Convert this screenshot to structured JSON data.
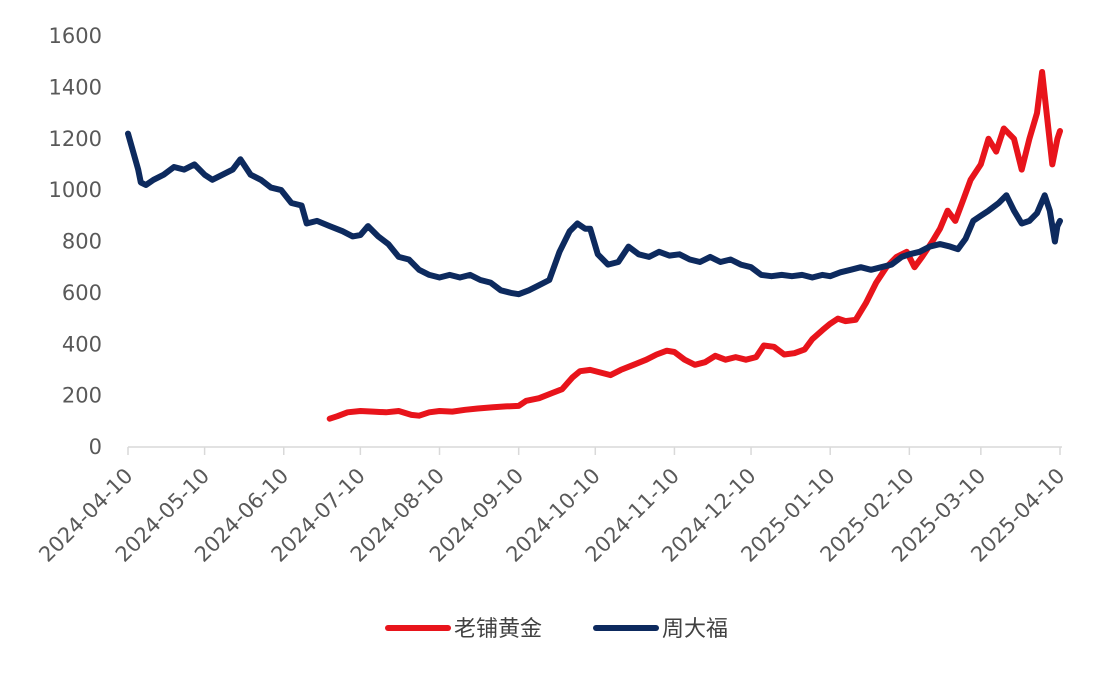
{
  "chart_data": {
    "type": "line",
    "ylim": [
      0,
      1600
    ],
    "yticks": [
      0,
      200,
      400,
      600,
      800,
      1000,
      1200,
      1400,
      1600
    ],
    "xlim": [
      "2024-04-10",
      "2025-04-10"
    ],
    "xticks": [
      "2024-04-10",
      "2024-05-10",
      "2024-06-10",
      "2024-07-10",
      "2024-08-10",
      "2024-09-10",
      "2024-10-10",
      "2024-11-10",
      "2024-12-10",
      "2025-01-10",
      "2025-02-10",
      "2025-03-10",
      "2025-04-10"
    ],
    "legend_position": "bottom",
    "grid": false,
    "series": [
      {
        "name": "老铺黄金",
        "color": "#e8141b",
        "points": [
          [
            "2024-06-28",
            110
          ],
          [
            "2024-07-01",
            120
          ],
          [
            "2024-07-05",
            135
          ],
          [
            "2024-07-10",
            140
          ],
          [
            "2024-07-15",
            138
          ],
          [
            "2024-07-20",
            135
          ],
          [
            "2024-07-25",
            140
          ],
          [
            "2024-07-30",
            125
          ],
          [
            "2024-08-02",
            122
          ],
          [
            "2024-08-06",
            135
          ],
          [
            "2024-08-10",
            140
          ],
          [
            "2024-08-15",
            138
          ],
          [
            "2024-08-20",
            145
          ],
          [
            "2024-08-25",
            150
          ],
          [
            "2024-08-31",
            155
          ],
          [
            "2024-09-05",
            158
          ],
          [
            "2024-09-10",
            160
          ],
          [
            "2024-09-13",
            180
          ],
          [
            "2024-09-18",
            190
          ],
          [
            "2024-09-23",
            210
          ],
          [
            "2024-09-27",
            225
          ],
          [
            "2024-10-01",
            270
          ],
          [
            "2024-10-04",
            295
          ],
          [
            "2024-10-08",
            300
          ],
          [
            "2024-10-12",
            290
          ],
          [
            "2024-10-16",
            280
          ],
          [
            "2024-10-20",
            300
          ],
          [
            "2024-10-25",
            320
          ],
          [
            "2024-10-30",
            340
          ],
          [
            "2024-11-03",
            360
          ],
          [
            "2024-11-07",
            375
          ],
          [
            "2024-11-10",
            370
          ],
          [
            "2024-11-14",
            340
          ],
          [
            "2024-11-18",
            320
          ],
          [
            "2024-11-22",
            330
          ],
          [
            "2024-11-26",
            355
          ],
          [
            "2024-11-30",
            340
          ],
          [
            "2024-12-04",
            350
          ],
          [
            "2024-12-08",
            340
          ],
          [
            "2024-12-12",
            350
          ],
          [
            "2024-12-15",
            395
          ],
          [
            "2024-12-19",
            390
          ],
          [
            "2024-12-23",
            360
          ],
          [
            "2024-12-27",
            365
          ],
          [
            "2024-12-31",
            380
          ],
          [
            "2025-01-03",
            420
          ],
          [
            "2025-01-07",
            455
          ],
          [
            "2025-01-10",
            480
          ],
          [
            "2025-01-13",
            500
          ],
          [
            "2025-01-16",
            490
          ],
          [
            "2025-01-20",
            495
          ],
          [
            "2025-01-24",
            560
          ],
          [
            "2025-01-28",
            640
          ],
          [
            "2025-02-01",
            700
          ],
          [
            "2025-02-05",
            740
          ],
          [
            "2025-02-09",
            760
          ],
          [
            "2025-02-12",
            700
          ],
          [
            "2025-02-15",
            740
          ],
          [
            "2025-02-19",
            800
          ],
          [
            "2025-02-22",
            850
          ],
          [
            "2025-02-25",
            920
          ],
          [
            "2025-02-28",
            880
          ],
          [
            "2025-03-03",
            960
          ],
          [
            "2025-03-06",
            1040
          ],
          [
            "2025-03-10",
            1100
          ],
          [
            "2025-03-13",
            1200
          ],
          [
            "2025-03-16",
            1150
          ],
          [
            "2025-03-19",
            1240
          ],
          [
            "2025-03-23",
            1200
          ],
          [
            "2025-03-26",
            1080
          ],
          [
            "2025-03-29",
            1200
          ],
          [
            "2025-04-01",
            1300
          ],
          [
            "2025-04-03",
            1460
          ],
          [
            "2025-04-05",
            1280
          ],
          [
            "2025-04-07",
            1100
          ],
          [
            "2025-04-09",
            1200
          ],
          [
            "2025-04-10",
            1230
          ]
        ]
      },
      {
        "name": "周大福",
        "color": "#0d2a5e",
        "points": [
          [
            "2024-04-10",
            1220
          ],
          [
            "2024-04-12",
            1150
          ],
          [
            "2024-04-14",
            1080
          ],
          [
            "2024-04-15",
            1030
          ],
          [
            "2024-04-17",
            1020
          ],
          [
            "2024-04-20",
            1040
          ],
          [
            "2024-04-24",
            1060
          ],
          [
            "2024-04-28",
            1090
          ],
          [
            "2024-05-02",
            1080
          ],
          [
            "2024-05-06",
            1100
          ],
          [
            "2024-05-10",
            1060
          ],
          [
            "2024-05-13",
            1040
          ],
          [
            "2024-05-17",
            1060
          ],
          [
            "2024-05-21",
            1080
          ],
          [
            "2024-05-24",
            1120
          ],
          [
            "2024-05-28",
            1060
          ],
          [
            "2024-06-01",
            1040
          ],
          [
            "2024-06-05",
            1010
          ],
          [
            "2024-06-09",
            1000
          ],
          [
            "2024-06-13",
            950
          ],
          [
            "2024-06-17",
            940
          ],
          [
            "2024-06-19",
            870
          ],
          [
            "2024-06-23",
            880
          ],
          [
            "2024-06-28",
            860
          ],
          [
            "2024-07-03",
            840
          ],
          [
            "2024-07-07",
            820
          ],
          [
            "2024-07-10",
            825
          ],
          [
            "2024-07-13",
            860
          ],
          [
            "2024-07-17",
            820
          ],
          [
            "2024-07-21",
            790
          ],
          [
            "2024-07-25",
            740
          ],
          [
            "2024-07-29",
            730
          ],
          [
            "2024-08-02",
            690
          ],
          [
            "2024-08-06",
            670
          ],
          [
            "2024-08-10",
            660
          ],
          [
            "2024-08-14",
            670
          ],
          [
            "2024-08-18",
            660
          ],
          [
            "2024-08-22",
            670
          ],
          [
            "2024-08-26",
            650
          ],
          [
            "2024-08-30",
            640
          ],
          [
            "2024-09-03",
            610
          ],
          [
            "2024-09-07",
            600
          ],
          [
            "2024-09-10",
            595
          ],
          [
            "2024-09-14",
            610
          ],
          [
            "2024-09-18",
            630
          ],
          [
            "2024-09-22",
            650
          ],
          [
            "2024-09-26",
            760
          ],
          [
            "2024-09-30",
            840
          ],
          [
            "2024-10-03",
            870
          ],
          [
            "2024-10-06",
            850
          ],
          [
            "2024-10-08",
            850
          ],
          [
            "2024-10-11",
            750
          ],
          [
            "2024-10-15",
            710
          ],
          [
            "2024-10-19",
            720
          ],
          [
            "2024-10-23",
            780
          ],
          [
            "2024-10-27",
            750
          ],
          [
            "2024-10-31",
            740
          ],
          [
            "2024-11-04",
            760
          ],
          [
            "2024-11-08",
            745
          ],
          [
            "2024-11-12",
            750
          ],
          [
            "2024-11-16",
            730
          ],
          [
            "2024-11-20",
            720
          ],
          [
            "2024-11-24",
            740
          ],
          [
            "2024-11-28",
            720
          ],
          [
            "2024-12-02",
            730
          ],
          [
            "2024-12-06",
            710
          ],
          [
            "2024-12-10",
            700
          ],
          [
            "2024-12-14",
            670
          ],
          [
            "2024-12-18",
            665
          ],
          [
            "2024-12-22",
            670
          ],
          [
            "2024-12-26",
            665
          ],
          [
            "2024-12-30",
            670
          ],
          [
            "2025-01-03",
            660
          ],
          [
            "2025-01-07",
            670
          ],
          [
            "2025-01-10",
            665
          ],
          [
            "2025-01-14",
            680
          ],
          [
            "2025-01-18",
            690
          ],
          [
            "2025-01-22",
            700
          ],
          [
            "2025-01-26",
            690
          ],
          [
            "2025-01-30",
            700
          ],
          [
            "2025-02-03",
            710
          ],
          [
            "2025-02-07",
            740
          ],
          [
            "2025-02-10",
            750
          ],
          [
            "2025-02-14",
            760
          ],
          [
            "2025-02-18",
            780
          ],
          [
            "2025-02-22",
            790
          ],
          [
            "2025-02-26",
            780
          ],
          [
            "2025-03-01",
            770
          ],
          [
            "2025-03-04",
            810
          ],
          [
            "2025-03-07",
            880
          ],
          [
            "2025-03-10",
            900
          ],
          [
            "2025-03-13",
            920
          ],
          [
            "2025-03-17",
            950
          ],
          [
            "2025-03-20",
            980
          ],
          [
            "2025-03-23",
            920
          ],
          [
            "2025-03-26",
            870
          ],
          [
            "2025-03-29",
            880
          ],
          [
            "2025-04-01",
            910
          ],
          [
            "2025-04-04",
            980
          ],
          [
            "2025-04-06",
            920
          ],
          [
            "2025-04-08",
            800
          ],
          [
            "2025-04-09",
            860
          ],
          [
            "2025-04-10",
            880
          ]
        ]
      }
    ]
  }
}
